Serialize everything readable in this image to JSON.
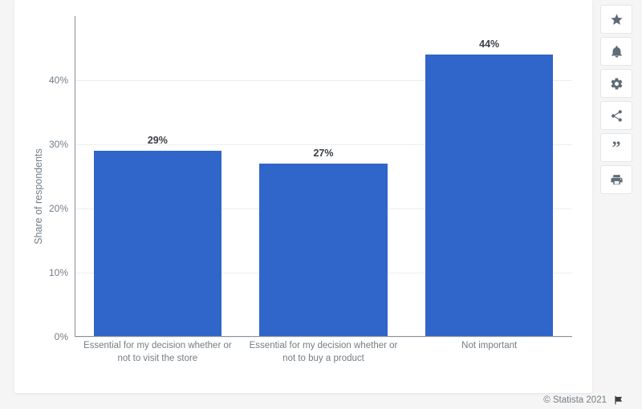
{
  "chart": {
    "type": "bar",
    "ylabel": "Share of respondents",
    "ylim": [
      0,
      50
    ],
    "ytick_step": 10,
    "yticks": [
      0,
      10,
      20,
      30,
      40
    ],
    "ytick_labels": [
      "0%",
      "10%",
      "20%",
      "30%",
      "40%"
    ],
    "categories": [
      "Essential for my decision whether or not to visit the store",
      "Essential for my decision whether or not to buy a product",
      "Not important"
    ],
    "values": [
      29,
      27,
      44
    ],
    "value_labels": [
      "29%",
      "27%",
      "44%"
    ],
    "bar_color": "#3065ca",
    "bar_width": 0.77,
    "background_color": "#ffffff",
    "grid_color": "#ecedef",
    "axis_color": "#8a9199",
    "text_color": "#747d85",
    "value_label_color": "#3b3f44",
    "value_label_fontweight": 700,
    "label_fontsize": 12,
    "value_fontsize": 13
  },
  "toolbar": {
    "items": [
      {
        "name": "favorite",
        "icon": "star"
      },
      {
        "name": "notify",
        "icon": "bell"
      },
      {
        "name": "settings",
        "icon": "gear"
      },
      {
        "name": "share",
        "icon": "share"
      },
      {
        "name": "cite",
        "icon": "quote"
      },
      {
        "name": "print",
        "icon": "print"
      }
    ]
  },
  "attribution": {
    "text": "© Statista 2021",
    "flag_icon": "flag"
  }
}
